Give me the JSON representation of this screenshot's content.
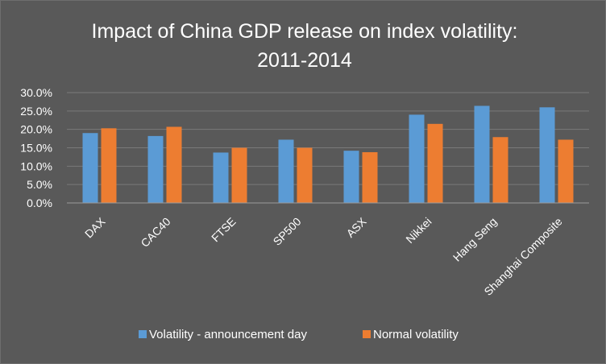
{
  "chart_data": {
    "type": "bar",
    "title_lines": [
      "Impact of China GDP release on index volatility:",
      "2011-2014"
    ],
    "xlabel": "",
    "ylabel": "",
    "ylim": [
      0,
      30
    ],
    "ytick_values": [
      0,
      5,
      10,
      15,
      20,
      25,
      30
    ],
    "ytick_labels": [
      "0.0%",
      "5.0%",
      "10.0%",
      "15.0%",
      "20.0%",
      "25.0%",
      "30.0%"
    ],
    "grid": true,
    "legend_position": "bottom",
    "categories": [
      "DAX",
      "CAC40",
      "FTSE",
      "SP500",
      "ASX",
      "Nikkei",
      "Hang Seng",
      "Shanghai Composite"
    ],
    "series": [
      {
        "name": "Volatility - announcement day",
        "color": "#5b9bd5",
        "values": [
          19.0,
          18.2,
          13.7,
          17.2,
          14.2,
          24.0,
          26.4,
          26.0
        ]
      },
      {
        "name": "Normal volatility",
        "color": "#ed7d31",
        "values": [
          20.3,
          20.7,
          15.0,
          15.0,
          13.8,
          21.5,
          17.9,
          17.2
        ]
      }
    ]
  }
}
